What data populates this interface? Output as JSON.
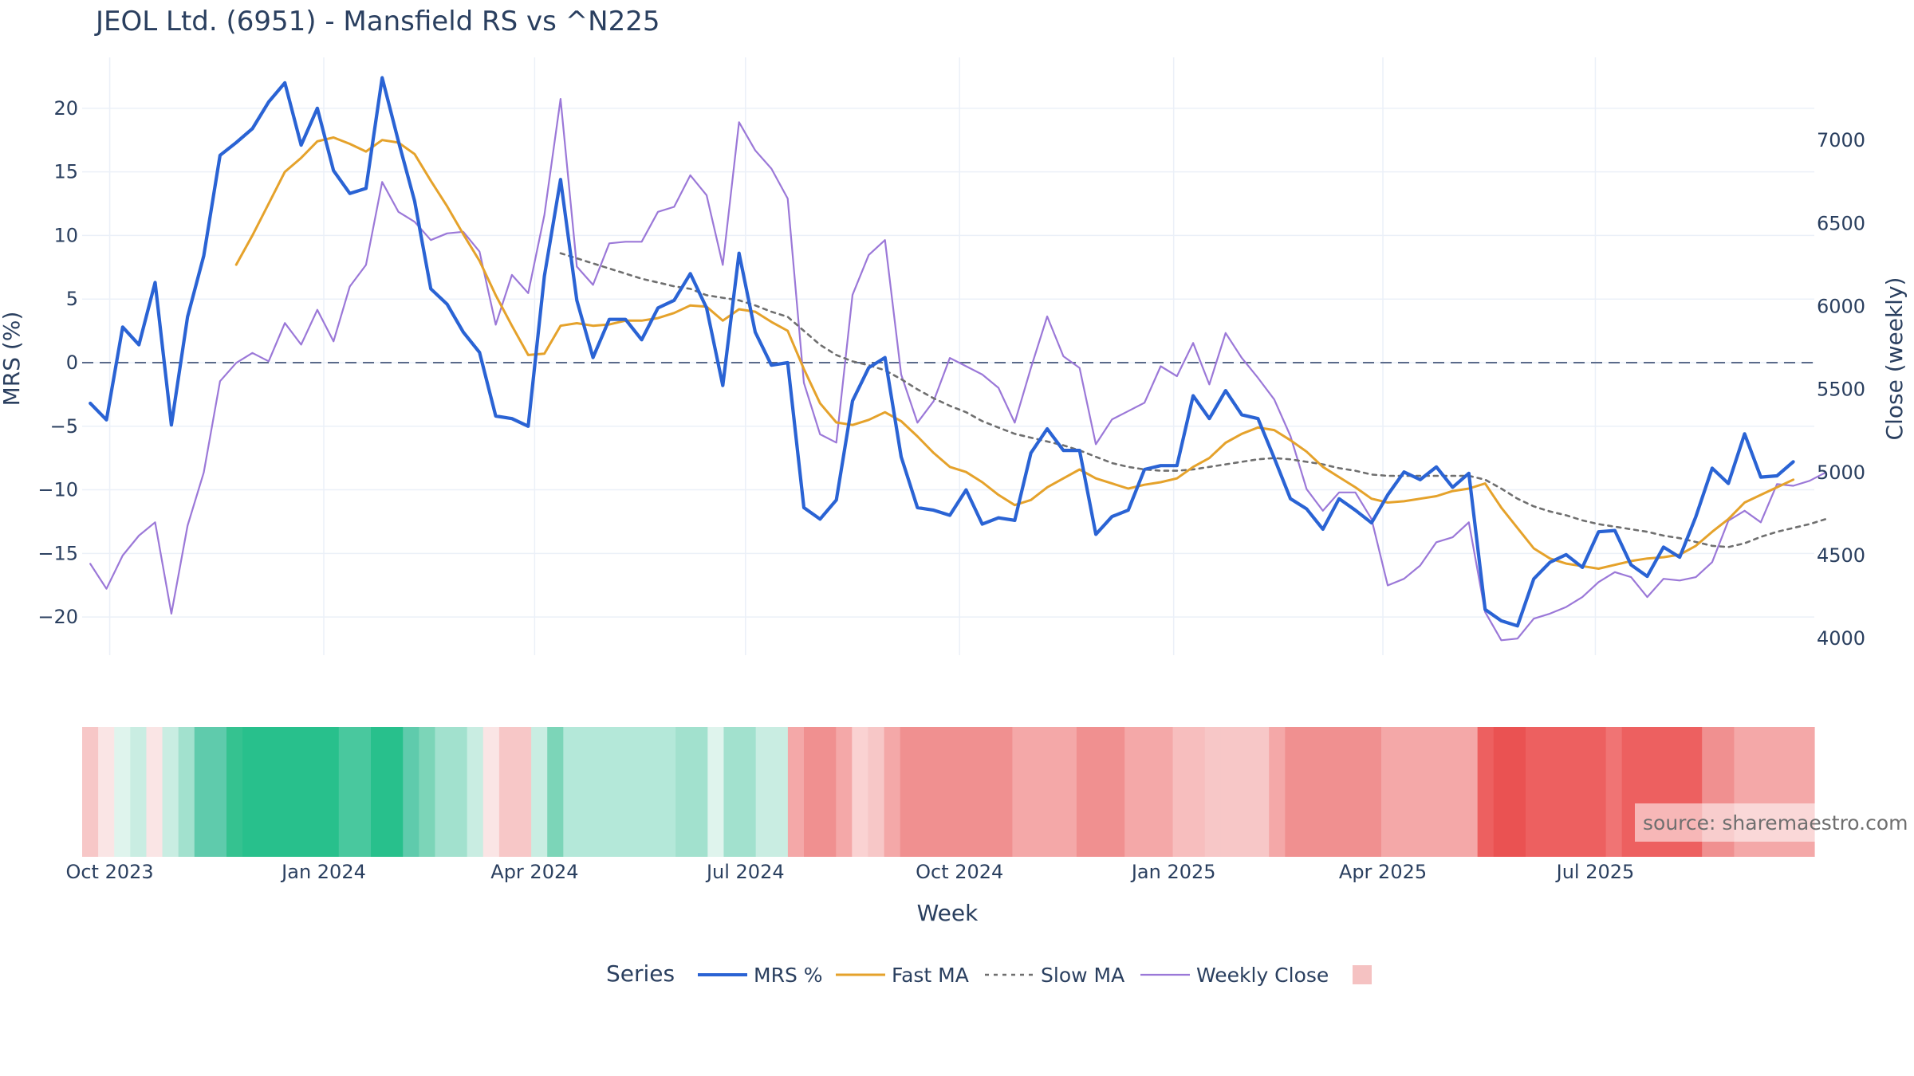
{
  "chart_data": {
    "type": "line",
    "title": "JEOL Ltd. (6951) - Mansfield RS vs ^N225",
    "xlabel": "Week",
    "ylabel_left": "MRS (%)",
    "ylabel_right": "Close (weekly)",
    "ylim_left": [
      -23,
      24
    ],
    "ylim_right": [
      3900,
      7500
    ],
    "yticks_left": [
      20,
      15,
      10,
      5,
      0,
      -5,
      -10,
      -15,
      -20
    ],
    "yticks_right": [
      7000,
      6500,
      6000,
      5500,
      5000,
      4500,
      4000
    ],
    "x_tick_labels": [
      {
        "label": "Oct 2023",
        "week": 1.2
      },
      {
        "label": "Jan 2024",
        "week": 14.4
      },
      {
        "label": "Apr 2024",
        "week": 27.4
      },
      {
        "label": "Jul 2024",
        "week": 40.4
      },
      {
        "label": "Oct 2024",
        "week": 53.6
      },
      {
        "label": "Jan 2025",
        "week": 66.8
      },
      {
        "label": "Apr 2025",
        "week": 79.7
      },
      {
        "label": "Jul 2025",
        "week": 92.8
      }
    ],
    "x_range": [
      -0.5,
      106.3
    ],
    "zero_line": 0,
    "legend_title": "Series",
    "series": [
      {
        "name": "MRS %",
        "color": "#2a63d4",
        "style": "solid",
        "axis": "left",
        "values": [
          -3.2,
          -4.5,
          2.8,
          1.4,
          6.3,
          -4.9,
          3.6,
          8.4,
          16.3,
          17.3,
          18.4,
          20.5,
          22.0,
          17.1,
          20.0,
          15.1,
          13.3,
          13.7,
          22.4,
          17.4,
          12.7,
          5.8,
          4.6,
          2.4,
          0.8,
          -4.2,
          -4.4,
          -5.0,
          6.8,
          14.4,
          4.9,
          0.4,
          3.4,
          3.4,
          1.8,
          4.3,
          4.9,
          7.0,
          4.3,
          -1.8,
          8.6,
          2.4,
          -0.2,
          0.0,
          -11.4,
          -12.3,
          -10.8,
          -3.0,
          -0.4,
          0.4,
          -7.4,
          -11.4,
          -11.6,
          -12.0,
          -10.0,
          -12.7,
          -12.2,
          -12.4,
          -7.1,
          -5.2,
          -6.9,
          -6.9,
          -13.5,
          -12.1,
          -11.6,
          -8.4,
          -8.1,
          -8.1,
          -2.6,
          -4.4,
          -2.2,
          -4.1,
          -4.4,
          -7.5,
          -10.7,
          -11.5,
          -13.1,
          -10.7,
          -11.6,
          -12.6,
          -10.4,
          -8.6,
          -9.2,
          -8.2,
          -9.8,
          -8.7,
          -19.4,
          -20.3,
          -20.7,
          -17.0,
          -15.7,
          -15.1,
          -16.1,
          -13.3,
          -13.2,
          -15.9,
          -16.8,
          -14.5,
          -15.3,
          -12.1,
          -8.3,
          -9.5,
          -5.6,
          -9.0,
          -8.9,
          -7.8
        ]
      },
      {
        "name": "Fast MA",
        "color": "#e5a22b",
        "style": "solid",
        "axis": "left",
        "values": [
          null,
          null,
          null,
          null,
          null,
          null,
          null,
          null,
          null,
          7.7,
          10.0,
          12.5,
          15.0,
          16.1,
          17.4,
          17.7,
          17.2,
          16.6,
          17.5,
          17.3,
          16.4,
          14.3,
          12.3,
          10.1,
          8.0,
          5.3,
          2.9,
          0.6,
          0.7,
          2.9,
          3.1,
          2.9,
          3.0,
          3.3,
          3.3,
          3.5,
          3.9,
          4.5,
          4.4,
          3.3,
          4.2,
          4.0,
          3.2,
          2.5,
          -0.5,
          -3.2,
          -4.7,
          -4.9,
          -4.5,
          -3.9,
          -4.6,
          -5.8,
          -7.1,
          -8.2,
          -8.6,
          -9.4,
          -10.4,
          -11.2,
          -10.8,
          -9.8,
          -9.1,
          -8.4,
          -9.1,
          -9.5,
          -9.9,
          -9.6,
          -9.4,
          -9.1,
          -8.2,
          -7.5,
          -6.3,
          -5.6,
          -5.1,
          -5.3,
          -6.1,
          -7.0,
          -8.2,
          -9.0,
          -9.8,
          -10.7,
          -11.0,
          -10.9,
          -10.7,
          -10.5,
          -10.1,
          -9.9,
          -9.5,
          -11.4,
          -13.0,
          -14.6,
          -15.4,
          -15.8,
          -16.0,
          -16.2,
          -15.9,
          -15.6,
          -15.4,
          -15.3,
          -15.1,
          -14.4,
          -13.3,
          -12.3,
          -11.0,
          -10.4,
          -9.8,
          -9.2
        ]
      },
      {
        "name": "Slow MA",
        "color": "#6f6f6f",
        "style": "dotted",
        "axis": "left",
        "values": [
          null,
          null,
          null,
          null,
          null,
          null,
          null,
          null,
          null,
          null,
          null,
          null,
          null,
          null,
          null,
          null,
          null,
          null,
          null,
          null,
          null,
          null,
          null,
          null,
          null,
          null,
          null,
          null,
          null,
          8.6,
          8.2,
          7.8,
          7.4,
          7.0,
          6.6,
          6.3,
          6.0,
          5.8,
          5.3,
          5.1,
          4.9,
          4.5,
          4.0,
          3.6,
          2.5,
          1.4,
          0.6,
          0.1,
          -0.2,
          -0.6,
          -1.3,
          -2.1,
          -2.8,
          -3.4,
          -3.9,
          -4.6,
          -5.1,
          -5.6,
          -5.9,
          -6.2,
          -6.5,
          -6.9,
          -7.4,
          -7.9,
          -8.2,
          -8.4,
          -8.5,
          -8.5,
          -8.4,
          -8.2,
          -8.0,
          -7.8,
          -7.6,
          -7.5,
          -7.6,
          -7.8,
          -8.0,
          -8.3,
          -8.5,
          -8.8,
          -8.9,
          -8.9,
          -8.9,
          -8.9,
          -8.9,
          -8.9,
          -9.2,
          -9.9,
          -10.7,
          -11.3,
          -11.7,
          -12.0,
          -12.4,
          -12.7,
          -12.9,
          -13.1,
          -13.3,
          -13.6,
          -13.8,
          -14.1,
          -14.4,
          -14.5,
          -14.2,
          -13.7,
          -13.3,
          -13.0,
          -12.7,
          -12.3
        ]
      },
      {
        "name": "Weekly Close",
        "color": "#9b78d8",
        "style": "solid",
        "axis": "right",
        "values": [
          4450,
          4300,
          4500,
          4620,
          4700,
          4150,
          4680,
          5000,
          5550,
          5660,
          5720,
          5670,
          5900,
          5770,
          5980,
          5790,
          6120,
          6250,
          6750,
          6570,
          6510,
          6400,
          6440,
          6450,
          6330,
          5890,
          6190,
          6080,
          6550,
          7250,
          6240,
          6130,
          6380,
          6390,
          6390,
          6570,
          6600,
          6790,
          6670,
          6250,
          7110,
          6940,
          6830,
          6650,
          5540,
          5230,
          5180,
          6070,
          6310,
          6400,
          5590,
          5300,
          5430,
          5690,
          5640,
          5590,
          5510,
          5300,
          5630,
          5940,
          5700,
          5630,
          5170,
          5320,
          5370,
          5420,
          5640,
          5580,
          5780,
          5530,
          5840,
          5690,
          5570,
          5440,
          5220,
          4900,
          4770,
          4880,
          4880,
          4720,
          4320,
          4360,
          4440,
          4580,
          4610,
          4700,
          4160,
          3990,
          4000,
          4120,
          4150,
          4190,
          4250,
          4340,
          4400,
          4370,
          4250,
          4360,
          4350,
          4370,
          4460,
          4710,
          4770,
          4700,
          4930,
          4920,
          4950,
          5000
        ]
      }
    ],
    "heatmap_strip": {
      "description": "weekly MRS strength band",
      "rgb_colors": [
        "247,199,199",
        "250,229,229",
        "223,244,237",
        "201,237,226",
        "250,229,229",
        "201,237,226",
        "162,225,206",
        "95,203,172",
        "95,203,172",
        "53,194,144",
        "40,192,140",
        "40,192,140",
        "40,192,140",
        "40,192,140",
        "40,192,140",
        "40,192,140",
        "73,200,158",
        "73,200,158",
        "40,192,140",
        "40,192,140",
        "95,203,172",
        "124,213,184",
        "162,225,206",
        "162,225,206",
        "201,237,226",
        "250,229,229",
        "247,199,199",
        "247,199,199",
        "201,237,226",
        "124,213,184",
        "180,232,217",
        "180,232,217",
        "180,232,217",
        "180,232,217",
        "180,232,217",
        "180,232,217",
        "180,232,217",
        "162,225,206",
        "162,225,206",
        "223,244,237",
        "162,225,206",
        "162,225,206",
        "201,237,226",
        "201,237,226",
        "244,168,168",
        "240,144,144",
        "240,144,144",
        "244,168,168",
        "250,210,210",
        "247,199,199",
        "244,168,168",
        "240,144,144",
        "240,144,144",
        "240,144,144",
        "240,144,144",
        "240,144,144",
        "240,144,144",
        "240,144,144",
        "244,168,168",
        "244,168,168",
        "244,168,168",
        "244,168,168",
        "240,144,144",
        "240,144,144",
        "240,144,144",
        "244,168,168",
        "244,168,168",
        "244,168,168",
        "247,190,190",
        "247,190,190",
        "247,199,199",
        "247,199,199",
        "247,199,199",
        "247,199,199",
        "244,168,168",
        "240,144,144",
        "240,144,144",
        "240,144,144",
        "240,144,144",
        "240,144,144",
        "240,144,144",
        "244,168,168",
        "244,168,168",
        "244,168,168",
        "244,168,168",
        "244,168,168",
        "244,168,168",
        "237,96,96",
        "234,82,82",
        "234,82,82",
        "237,96,96",
        "237,96,96",
        "237,96,96",
        "237,96,96",
        "237,96,96",
        "240,116,116",
        "237,96,96",
        "237,96,96",
        "237,96,96",
        "237,96,96",
        "237,96,96",
        "240,144,144",
        "240,144,144",
        "244,168,168",
        "244,168,168",
        "244,168,168",
        "244,168,168",
        "244,168,168"
      ]
    },
    "legend_extra_swatch_color": "#f5c2c2",
    "watermark": "source: sharemaestro.com"
  }
}
